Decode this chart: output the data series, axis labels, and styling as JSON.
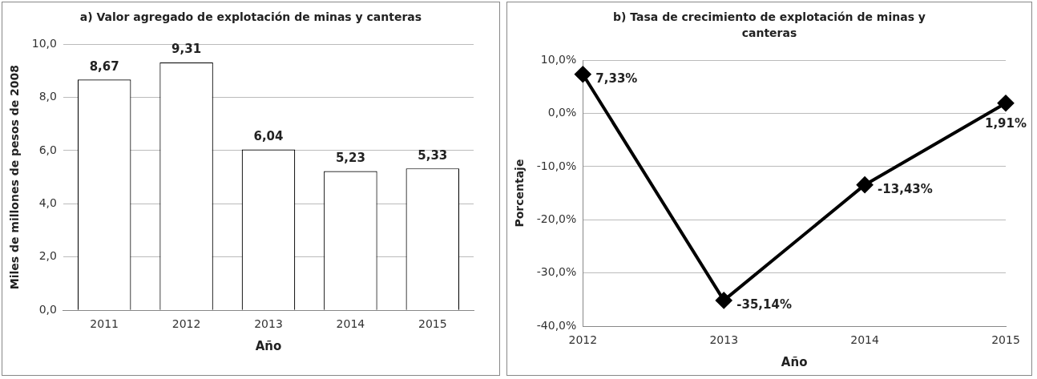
{
  "chart_data": [
    {
      "type": "bar",
      "title": "a) Valor agregado de explotación de minas y canteras",
      "xlabel": "Año",
      "ylabel": "Miles de millones de pesos de 2008",
      "categories": [
        "2011",
        "2012",
        "2013",
        "2014",
        "2015"
      ],
      "values": [
        8.67,
        9.31,
        6.04,
        5.23,
        5.33
      ],
      "color": "#ffffff",
      "value_labels": [
        "8,67",
        "9,31",
        "6,04",
        "5,23",
        "5,33"
      ],
      "ylim": [
        0,
        10
      ],
      "yticks": [
        {
          "value": 0,
          "label": "0,0"
        },
        {
          "value": 2,
          "label": "2,0"
        },
        {
          "value": 4,
          "label": "4,0"
        },
        {
          "value": 6,
          "label": "6,0"
        },
        {
          "value": 8,
          "label": "8,0"
        },
        {
          "value": 10,
          "label": "10,0"
        }
      ],
      "grid": "y",
      "legend": false
    },
    {
      "type": "line",
      "title": "b) Tasa de crecimiento de explotación de minas y canteras",
      "xlabel": "Año",
      "ylabel": "Porcentaje",
      "categories": [
        "2012",
        "2013",
        "2014",
        "2015"
      ],
      "values": [
        7.33,
        -35.14,
        -13.43,
        1.91
      ],
      "color": "#000000",
      "value_labels": [
        "7,33%",
        "-35,14%",
        "-13,43%",
        "1,91%"
      ],
      "ylim": [
        -40,
        10
      ],
      "yticks": [
        {
          "value": -40,
          "label": "-40,0%"
        },
        {
          "value": -30,
          "label": "-30,0%"
        },
        {
          "value": -20,
          "label": "-20,0%"
        },
        {
          "value": -10,
          "label": "-10,0%"
        },
        {
          "value": 0,
          "label": "0,0%"
        },
        {
          "value": 10,
          "label": "10,0%"
        }
      ],
      "grid": "y",
      "legend": false,
      "marker": "diamond",
      "line_style": "solid"
    }
  ]
}
